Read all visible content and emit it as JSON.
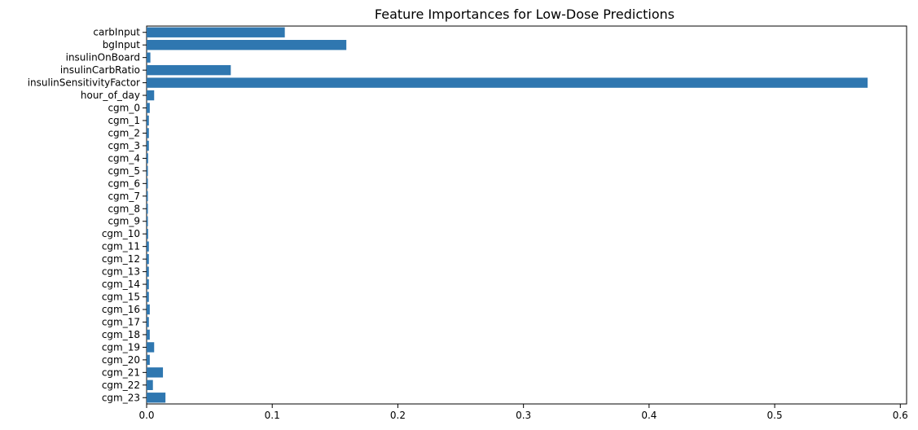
{
  "chart_data": {
    "type": "bar",
    "orientation": "horizontal",
    "title": "Feature Importances for Low-Dose Predictions",
    "xlabel": "",
    "ylabel": "",
    "xlim": [
      0,
      0.605
    ],
    "x_ticks": [
      "0.0",
      "0.1",
      "0.2",
      "0.3",
      "0.4",
      "0.5",
      "0.6"
    ],
    "categories": [
      "carbInput",
      "bgInput",
      "insulinOnBoard",
      "insulinCarbRatio",
      "insulinSensitivityFactor",
      "hour_of_day",
      "cgm_0",
      "cgm_1",
      "cgm_2",
      "cgm_3",
      "cgm_4",
      "cgm_5",
      "cgm_6",
      "cgm_7",
      "cgm_8",
      "cgm_9",
      "cgm_10",
      "cgm_11",
      "cgm_12",
      "cgm_13",
      "cgm_14",
      "cgm_15",
      "cgm_16",
      "cgm_17",
      "cgm_18",
      "cgm_19",
      "cgm_20",
      "cgm_21",
      "cgm_22",
      "cgm_23"
    ],
    "values": [
      0.11,
      0.159,
      0.003,
      0.067,
      0.574,
      0.006,
      0.0025,
      0.0018,
      0.0018,
      0.0018,
      0.0012,
      0.001,
      0.001,
      0.001,
      0.001,
      0.001,
      0.0012,
      0.0018,
      0.0018,
      0.0018,
      0.0018,
      0.0018,
      0.0025,
      0.0018,
      0.0025,
      0.006,
      0.0025,
      0.013,
      0.005,
      0.015
    ],
    "bar_color": "#2f77b0",
    "grid": false,
    "legend": "none"
  }
}
